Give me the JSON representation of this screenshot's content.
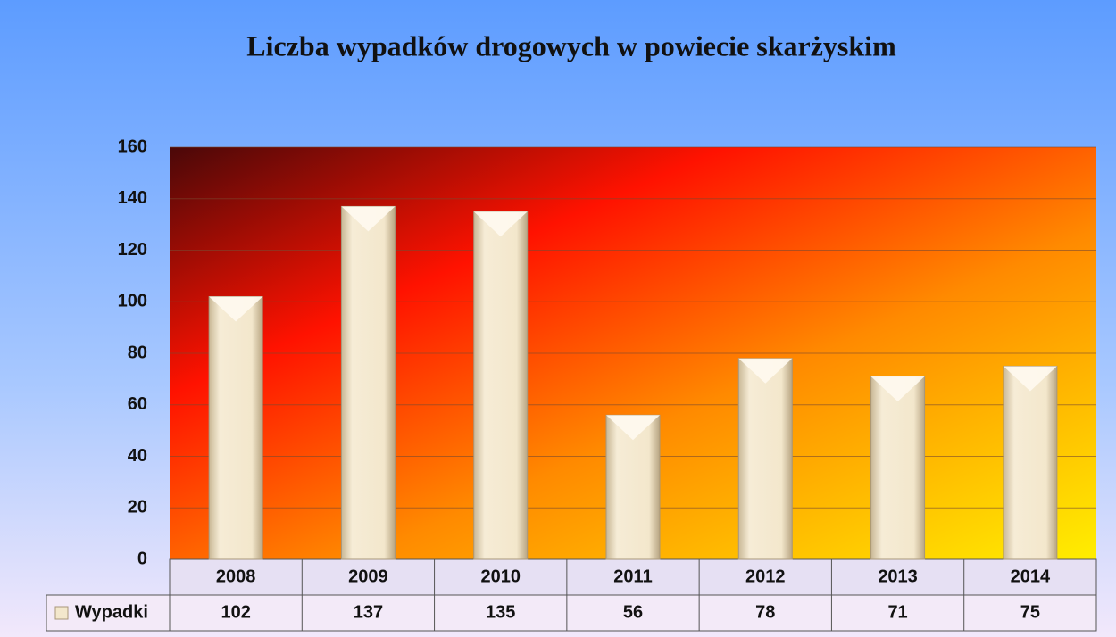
{
  "chart_data": {
    "type": "bar",
    "title": "Liczba wypadków drogowych w powiecie skarżyskim",
    "categories": [
      "2008",
      "2009",
      "2010",
      "2011",
      "2012",
      "2013",
      "2014"
    ],
    "series": [
      {
        "name": "Wypadki",
        "color": "#f3e7cc",
        "values": [
          102,
          137,
          135,
          56,
          78,
          71,
          75
        ]
      }
    ],
    "ylim": [
      0,
      160
    ],
    "yticks": [
      0,
      20,
      40,
      60,
      80,
      100,
      120,
      140,
      160
    ],
    "grid": true
  }
}
